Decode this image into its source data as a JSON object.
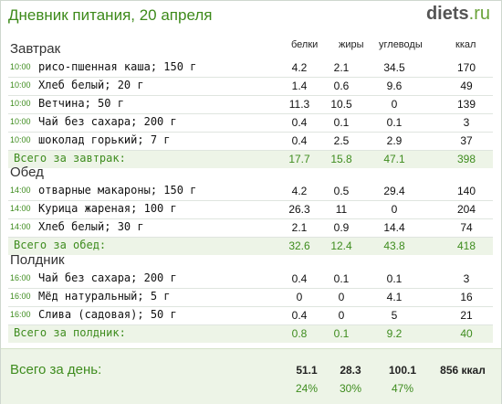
{
  "header": {
    "title": "Дневник питания, 20 апреля",
    "logo_main": "diets",
    "logo_tld": ".ru"
  },
  "columns": {
    "protein": "белки",
    "fat": "жиры",
    "carbs": "углеводы",
    "kcal": "ккал"
  },
  "meals": [
    {
      "name": "Завтрак",
      "items": [
        {
          "time": "10:00",
          "name": "рисо-пшенная каша; 150 г",
          "protein": "4.2",
          "fat": "2.1",
          "carbs": "34.5",
          "kcal": "170"
        },
        {
          "time": "10:00",
          "name": "Хлеб белый; 20 г",
          "protein": "1.4",
          "fat": "0.6",
          "carbs": "9.6",
          "kcal": "49"
        },
        {
          "time": "10:00",
          "name": "Ветчина; 50 г",
          "protein": "11.3",
          "fat": "10.5",
          "carbs": "0",
          "kcal": "139"
        },
        {
          "time": "10:00",
          "name": "Чай без сахара; 200 г",
          "protein": "0.4",
          "fat": "0.1",
          "carbs": "0.1",
          "kcal": "3"
        },
        {
          "time": "10:00",
          "name": "шоколад горький; 7 г",
          "protein": "0.4",
          "fat": "2.5",
          "carbs": "2.9",
          "kcal": "37"
        }
      ],
      "total": {
        "label": "Всего за завтрак:",
        "protein": "17.7",
        "fat": "15.8",
        "carbs": "47.1",
        "kcal": "398"
      }
    },
    {
      "name": "Обед",
      "items": [
        {
          "time": "14:00",
          "name": "отварные макароны; 150 г",
          "protein": "4.2",
          "fat": "0.5",
          "carbs": "29.4",
          "kcal": "140"
        },
        {
          "time": "14:00",
          "name": "Курица жареная; 100 г",
          "protein": "26.3",
          "fat": "11",
          "carbs": "0",
          "kcal": "204"
        },
        {
          "time": "14:00",
          "name": "Хлеб белый; 30 г",
          "protein": "2.1",
          "fat": "0.9",
          "carbs": "14.4",
          "kcal": "74"
        }
      ],
      "total": {
        "label": "Всего за обед:",
        "protein": "32.6",
        "fat": "12.4",
        "carbs": "43.8",
        "kcal": "418"
      }
    },
    {
      "name": "Полдник",
      "items": [
        {
          "time": "16:00",
          "name": "Чай без сахара; 200 г",
          "protein": "0.4",
          "fat": "0.1",
          "carbs": "0.1",
          "kcal": "3"
        },
        {
          "time": "16:00",
          "name": "Мёд натуральный; 5 г",
          "protein": "0",
          "fat": "0",
          "carbs": "4.1",
          "kcal": "16"
        },
        {
          "time": "16:00",
          "name": "Слива (садовая); 50 г",
          "protein": "0.4",
          "fat": "0",
          "carbs": "5",
          "kcal": "21"
        }
      ],
      "total": {
        "label": "Всего за полдник:",
        "protein": "0.8",
        "fat": "0.1",
        "carbs": "9.2",
        "kcal": "40"
      }
    }
  ],
  "day_total": {
    "label": "Всего за день:",
    "protein": "51.1",
    "fat": "28.3",
    "carbs": "100.1",
    "kcal": "856 ккал",
    "protein_pct": "24%",
    "fat_pct": "30%",
    "carbs_pct": "47%"
  }
}
